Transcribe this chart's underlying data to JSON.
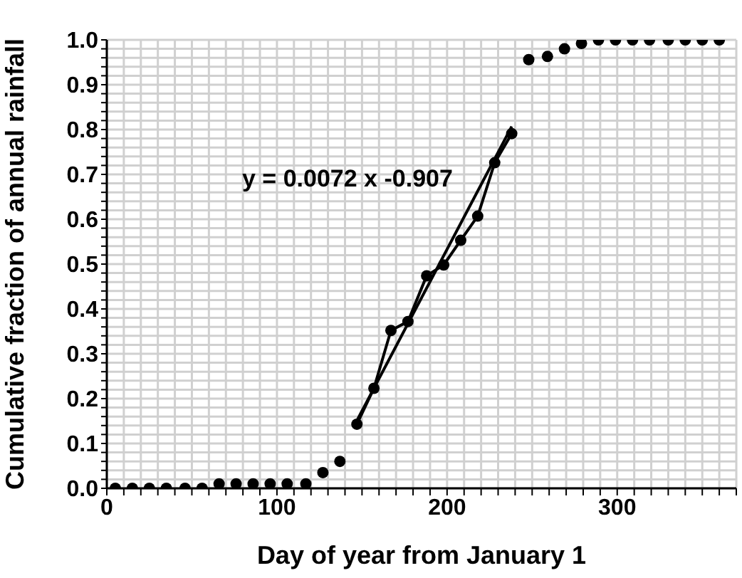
{
  "chart_data": {
    "type": "scatter",
    "xlabel": "Day of year from January 1",
    "ylabel": "Cumulative fraction of annual rainfall",
    "annotations": [
      "y = 0.0072 x -0.907"
    ],
    "series": [
      {
        "color": "#000000",
        "marker": "circle",
        "x": [
          5,
          15,
          25,
          35,
          46,
          56,
          66,
          76,
          86,
          96,
          106,
          117,
          127,
          137,
          248,
          259,
          269,
          279,
          289,
          299,
          309,
          319,
          330,
          340,
          350,
          360
        ],
        "values": [
          0,
          0,
          0,
          0,
          0,
          0,
          0.01,
          0.01,
          0.01,
          0.01,
          0.01,
          0.01,
          0.035,
          0.06,
          0.956,
          0.963,
          0.98,
          0.992,
          1,
          1,
          1,
          1,
          1,
          1,
          1,
          1
        ]
      },
      {
        "type": "line",
        "color": "#000000",
        "marker": "circle",
        "line_style": "solid",
        "x": [
          147,
          157,
          167,
          177,
          188,
          198,
          208,
          218,
          228,
          238
        ],
        "values": [
          0.143,
          0.223,
          0.352,
          0.372,
          0.474,
          0.498,
          0.553,
          0.607,
          0.726,
          0.791
        ]
      },
      {
        "type": "line",
        "color": "#000000",
        "marker": "none",
        "line_style": "solid",
        "x": [
          147,
          238
        ],
        "values": [
          0.151,
          0.807
        ]
      }
    ],
    "xlim": [
      0,
      370
    ],
    "xticks": [
      0,
      {
        "value": 10,
        "label": null
      },
      {
        "value": 20,
        "label": null
      },
      {
        "value": 30,
        "label": null
      },
      {
        "value": 40,
        "label": null
      },
      {
        "value": 50,
        "label": null
      },
      {
        "value": 60,
        "label": null
      },
      {
        "value": 70,
        "label": null
      },
      {
        "value": 80,
        "label": null
      },
      {
        "value": 90,
        "label": null
      },
      100,
      {
        "value": 110,
        "label": null
      },
      {
        "value": 120,
        "label": null
      },
      {
        "value": 130,
        "label": null
      },
      {
        "value": 140,
        "label": null
      },
      {
        "value": 150,
        "label": null
      },
      {
        "value": 160,
        "label": null
      },
      {
        "value": 170,
        "label": null
      },
      {
        "value": 180,
        "label": null
      },
      {
        "value": 190,
        "label": null
      },
      200,
      {
        "value": 210,
        "label": null
      },
      {
        "value": 220,
        "label": null
      },
      {
        "value": 230,
        "label": null
      },
      {
        "value": 240,
        "label": null
      },
      {
        "value": 250,
        "label": null
      },
      {
        "value": 260,
        "label": null
      },
      {
        "value": 270,
        "label": null
      },
      {
        "value": 280,
        "label": null
      },
      {
        "value": 290,
        "label": null
      },
      300,
      {
        "value": 310,
        "label": null
      },
      {
        "value": 320,
        "label": null
      },
      {
        "value": 330,
        "label": null
      },
      {
        "value": 340,
        "label": null
      },
      {
        "value": 350,
        "label": null
      },
      {
        "value": 360,
        "label": null
      },
      {
        "value": 370,
        "label": null
      }
    ],
    "ylim": [
      0,
      1
    ],
    "yticks": [
      {
        "value": 0,
        "label": "0.0"
      },
      {
        "value": 0.02,
        "label": null
      },
      {
        "value": 0.04,
        "label": null
      },
      {
        "value": 0.06,
        "label": null
      },
      {
        "value": 0.08,
        "label": null
      },
      {
        "value": 0.1,
        "label": "0.1"
      },
      {
        "value": 0.12,
        "label": null
      },
      {
        "value": 0.14,
        "label": null
      },
      {
        "value": 0.16,
        "label": null
      },
      {
        "value": 0.18,
        "label": null
      },
      {
        "value": 0.2,
        "label": "0.2"
      },
      {
        "value": 0.22,
        "label": null
      },
      {
        "value": 0.24,
        "label": null
      },
      {
        "value": 0.26,
        "label": null
      },
      {
        "value": 0.28,
        "label": null
      },
      {
        "value": 0.3,
        "label": "0.3"
      },
      {
        "value": 0.32,
        "label": null
      },
      {
        "value": 0.34,
        "label": null
      },
      {
        "value": 0.36,
        "label": null
      },
      {
        "value": 0.38,
        "label": null
      },
      {
        "value": 0.4,
        "label": "0.4"
      },
      {
        "value": 0.42,
        "label": null
      },
      {
        "value": 0.44,
        "label": null
      },
      {
        "value": 0.46,
        "label": null
      },
      {
        "value": 0.48,
        "label": null
      },
      {
        "value": 0.5,
        "label": "0.5"
      },
      {
        "value": 0.52,
        "label": null
      },
      {
        "value": 0.54,
        "label": null
      },
      {
        "value": 0.56,
        "label": null
      },
      {
        "value": 0.58,
        "label": null
      },
      {
        "value": 0.6,
        "label": "0.6"
      },
      {
        "value": 0.62,
        "label": null
      },
      {
        "value": 0.64,
        "label": null
      },
      {
        "value": 0.66,
        "label": null
      },
      {
        "value": 0.68,
        "label": null
      },
      {
        "value": 0.7,
        "label": "0.7"
      },
      {
        "value": 0.72,
        "label": null
      },
      {
        "value": 0.74,
        "label": null
      },
      {
        "value": 0.76,
        "label": null
      },
      {
        "value": 0.78,
        "label": null
      },
      {
        "value": 0.8,
        "label": "0.8"
      },
      {
        "value": 0.82,
        "label": null
      },
      {
        "value": 0.84,
        "label": null
      },
      {
        "value": 0.86,
        "label": null
      },
      {
        "value": 0.88,
        "label": null
      },
      {
        "value": 0.9,
        "label": "0.9"
      },
      {
        "value": 0.92,
        "label": null
      },
      {
        "value": 0.94,
        "label": null
      },
      {
        "value": 0.96,
        "label": null
      },
      {
        "value": 0.98,
        "label": null
      },
      {
        "value": 1,
        "label": "1.0"
      }
    ],
    "grid": true
  }
}
